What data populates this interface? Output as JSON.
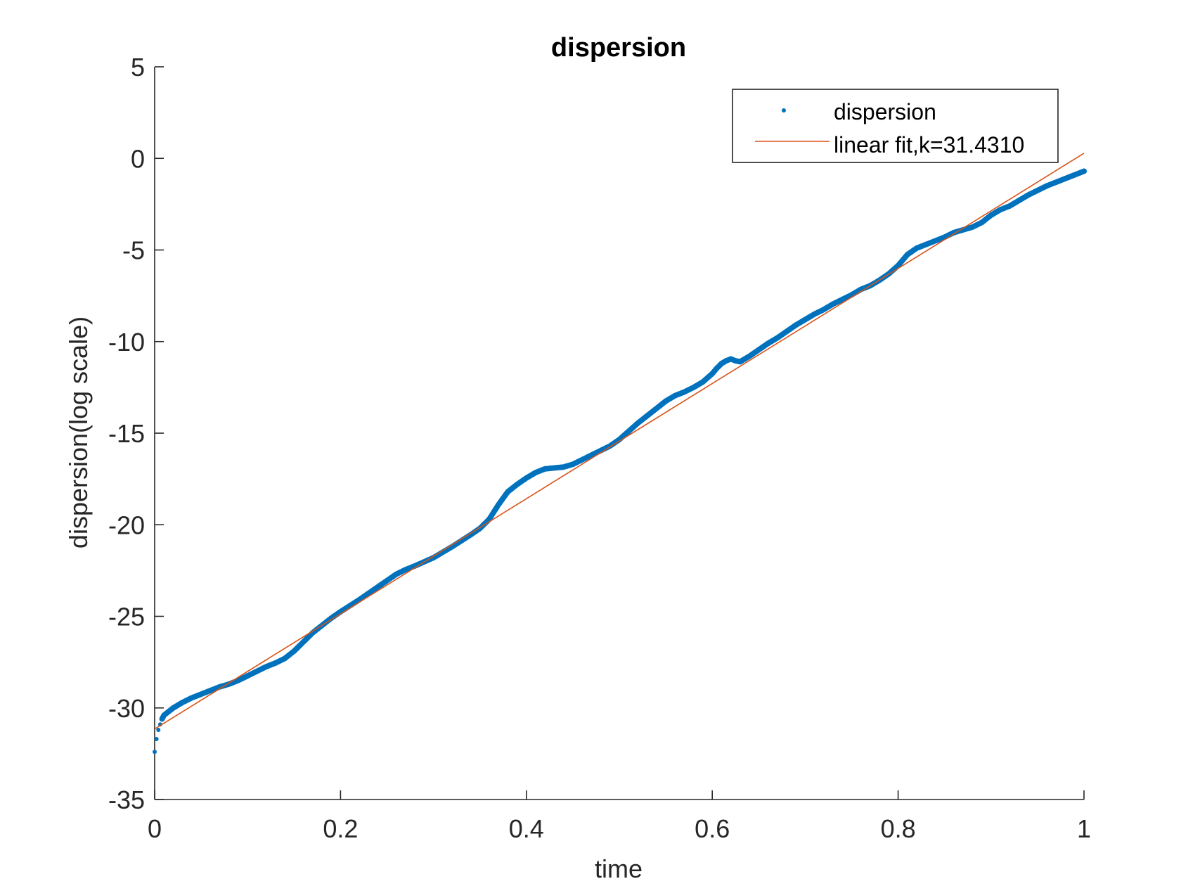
{
  "chart_data": {
    "type": "scatter",
    "title": "dispersion",
    "xlabel": "time",
    "ylabel": "dispersion(log scale)",
    "xlim": [
      0,
      1
    ],
    "ylim": [
      -35,
      5
    ],
    "xticks": [
      "0",
      "0.2",
      "0.4",
      "0.6",
      "0.8",
      "1"
    ],
    "xtick_values": [
      0,
      0.2,
      0.4,
      0.6,
      0.8,
      1
    ],
    "yticks": [
      "5",
      "0",
      "-5",
      "-10",
      "-15",
      "-20",
      "-25",
      "-30",
      "-35"
    ],
    "ytick_values": [
      5,
      0,
      -5,
      -10,
      -15,
      -20,
      -25,
      -30,
      -35
    ],
    "grid": false,
    "legend_position": "top-right",
    "series": [
      {
        "name": "dispersion",
        "style": "dots",
        "color": "#0072BD",
        "x": [
          0,
          0.002,
          0.004,
          0.006,
          0.008,
          0.01,
          0.02,
          0.03,
          0.04,
          0.05,
          0.06,
          0.07,
          0.08,
          0.09,
          0.1,
          0.11,
          0.12,
          0.13,
          0.14,
          0.15,
          0.16,
          0.17,
          0.18,
          0.19,
          0.2,
          0.22,
          0.24,
          0.26,
          0.27,
          0.28,
          0.3,
          0.32,
          0.34,
          0.35,
          0.36,
          0.37,
          0.38,
          0.39,
          0.4,
          0.41,
          0.42,
          0.43,
          0.44,
          0.45,
          0.46,
          0.47,
          0.48,
          0.49,
          0.5,
          0.51,
          0.52,
          0.53,
          0.54,
          0.55,
          0.56,
          0.57,
          0.58,
          0.59,
          0.6,
          0.605,
          0.61,
          0.615,
          0.62,
          0.625,
          0.63,
          0.635,
          0.64,
          0.65,
          0.66,
          0.67,
          0.68,
          0.69,
          0.7,
          0.71,
          0.72,
          0.73,
          0.74,
          0.75,
          0.76,
          0.77,
          0.78,
          0.79,
          0.8,
          0.81,
          0.82,
          0.83,
          0.84,
          0.85,
          0.86,
          0.87,
          0.88,
          0.89,
          0.9,
          0.91,
          0.92,
          0.93,
          0.94,
          0.95,
          0.96,
          0.97,
          0.98,
          0.99,
          1.0
        ],
        "y": [
          -32.4,
          -31.7,
          -31.2,
          -30.9,
          -30.6,
          -30.4,
          -30.0,
          -29.7,
          -29.45,
          -29.25,
          -29.05,
          -28.85,
          -28.7,
          -28.5,
          -28.25,
          -28.0,
          -27.75,
          -27.55,
          -27.3,
          -26.9,
          -26.4,
          -25.9,
          -25.5,
          -25.1,
          -24.75,
          -24.1,
          -23.4,
          -22.7,
          -22.45,
          -22.25,
          -21.8,
          -21.2,
          -20.55,
          -20.2,
          -19.7,
          -18.9,
          -18.2,
          -17.8,
          -17.45,
          -17.15,
          -16.95,
          -16.9,
          -16.85,
          -16.7,
          -16.45,
          -16.2,
          -15.95,
          -15.7,
          -15.35,
          -14.9,
          -14.45,
          -14.05,
          -13.65,
          -13.25,
          -12.95,
          -12.75,
          -12.5,
          -12.2,
          -11.75,
          -11.45,
          -11.2,
          -11.05,
          -10.95,
          -11.05,
          -11.1,
          -10.95,
          -10.8,
          -10.45,
          -10.1,
          -9.8,
          -9.45,
          -9.1,
          -8.8,
          -8.5,
          -8.25,
          -7.95,
          -7.7,
          -7.45,
          -7.15,
          -6.95,
          -6.65,
          -6.3,
          -5.85,
          -5.25,
          -4.9,
          -4.7,
          -4.5,
          -4.3,
          -4.05,
          -3.9,
          -3.75,
          -3.5,
          -3.1,
          -2.8,
          -2.6,
          -2.3,
          -2.0,
          -1.75,
          -1.5,
          -1.3,
          -1.1,
          -0.9,
          -0.7
        ]
      },
      {
        "name": "linear fit,k=31.4310",
        "style": "line",
        "color": "#D95319",
        "x": [
          0,
          1
        ],
        "y": [
          -31.15,
          0.28
        ]
      }
    ]
  }
}
